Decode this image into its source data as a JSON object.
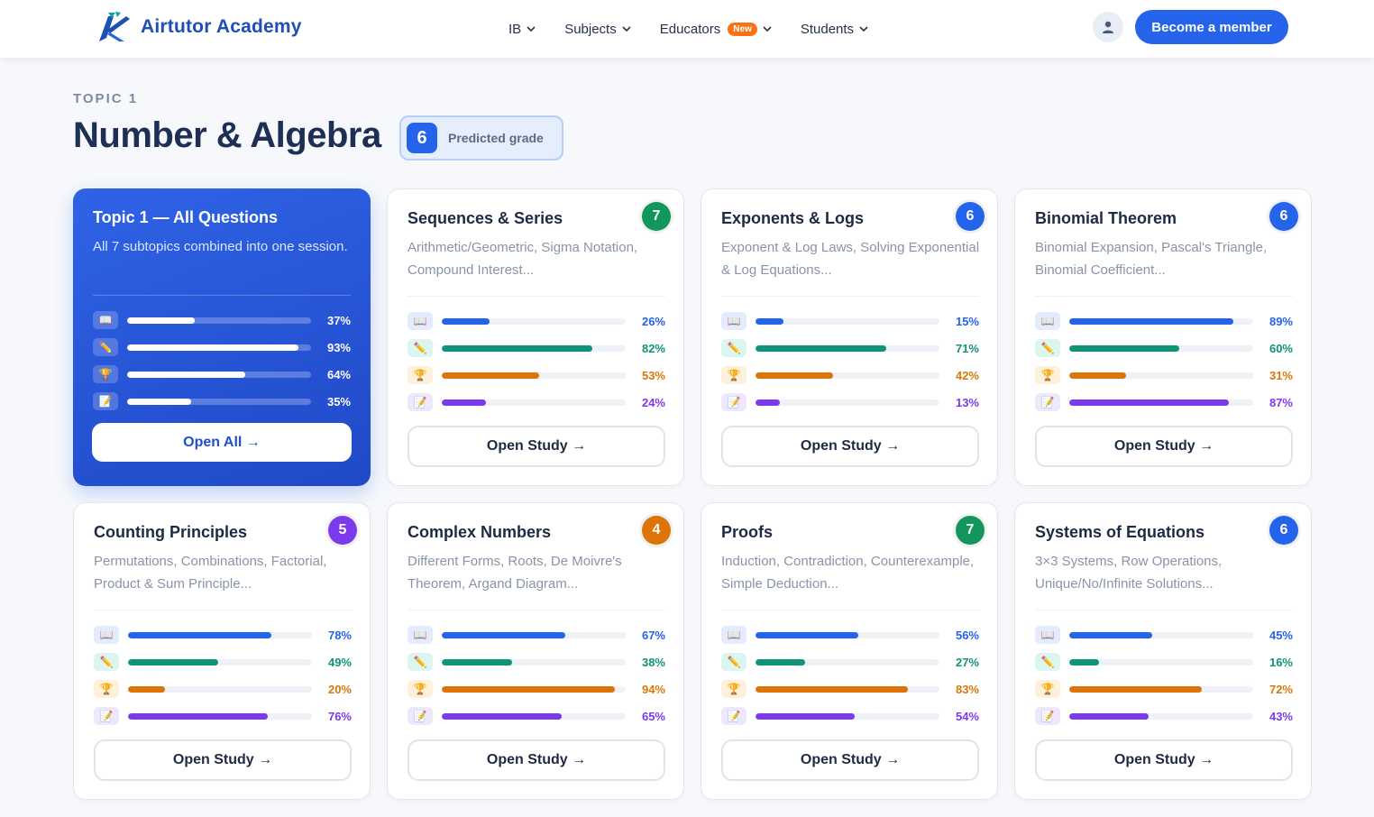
{
  "header": {
    "brand": "Airtutor Academy",
    "nav": [
      {
        "label": "IB",
        "badge": ""
      },
      {
        "label": "Subjects",
        "badge": ""
      },
      {
        "label": "Educators",
        "badge": "New"
      },
      {
        "label": "Students",
        "badge": ""
      }
    ],
    "cta": "Become a member"
  },
  "page": {
    "eyebrow": "TOPIC 1",
    "title": "Number & Algebra",
    "predicted_grade": "6",
    "predicted_grade_label": "Predicted grade"
  },
  "featured": {
    "title": "Topic 1 — All Questions",
    "desc": "All 7 subtopics combined into one session.",
    "bars": [
      {
        "icon": "book-icon",
        "glyph": "📖",
        "value": 37,
        "label": "37%"
      },
      {
        "icon": "pencil-icon",
        "glyph": "✏️",
        "value": 93,
        "label": "93%"
      },
      {
        "icon": "trophy-icon",
        "glyph": "🏆",
        "value": 64,
        "label": "64%"
      },
      {
        "icon": "memo-icon",
        "glyph": "📝",
        "value": 35,
        "label": "35%"
      }
    ],
    "button": "Open All →"
  },
  "cards": [
    {
      "title": "Sequences & Series",
      "desc": "Arithmetic/Geometric, Sigma Notation, Compound Interest...",
      "grade": "7",
      "grade_color": "#12965b",
      "bars": [
        26,
        82,
        53,
        24
      ],
      "labels": [
        "26%",
        "82%",
        "53%",
        "24%"
      ],
      "button": "Open Study →"
    },
    {
      "title": "Exponents & Logs",
      "desc": "Exponent & Log Laws, Solving Exponential & Log Equations...",
      "grade": "6",
      "grade_color": "#2563eb",
      "bars": [
        15,
        71,
        42,
        13
      ],
      "labels": [
        "15%",
        "71%",
        "42%",
        "13%"
      ],
      "button": "Open Study →"
    },
    {
      "title": "Binomial Theorem",
      "desc": "Binomial Expansion, Pascal's Triangle, Binomial Coefficient...",
      "grade": "6",
      "grade_color": "#2563eb",
      "bars": [
        89,
        60,
        31,
        87
      ],
      "labels": [
        "89%",
        "60%",
        "31%",
        "87%"
      ],
      "button": "Open Study →"
    },
    {
      "title": "Counting Principles",
      "desc": "Permutations, Combinations, Factorial, Product & Sum Principle...",
      "grade": "5",
      "grade_color": "#7c3aed",
      "bars": [
        78,
        49,
        20,
        76
      ],
      "labels": [
        "78%",
        "49%",
        "20%",
        "76%"
      ],
      "button": "Open Study →"
    },
    {
      "title": "Complex Numbers",
      "desc": "Different Forms, Roots, De Moivre's Theorem, Argand Diagram...",
      "grade": "4",
      "grade_color": "#dc7408",
      "bars": [
        67,
        38,
        94,
        65
      ],
      "labels": [
        "67%",
        "38%",
        "94%",
        "65%"
      ],
      "button": "Open Study →"
    },
    {
      "title": "Proofs",
      "desc": "Induction, Contradiction, Counterexample, Simple Deduction...",
      "grade": "7",
      "grade_color": "#12965b",
      "bars": [
        56,
        27,
        83,
        54
      ],
      "labels": [
        "56%",
        "27%",
        "83%",
        "54%"
      ],
      "button": "Open Study →"
    },
    {
      "title": "Systems of Equations",
      "desc": "3×3 Systems, Row Operations, Unique/No/Infinite Solutions...",
      "grade": "6",
      "grade_color": "#2563eb",
      "bars": [
        45,
        16,
        72,
        43
      ],
      "labels": [
        "45%",
        "16%",
        "72%",
        "43%"
      ],
      "button": "Open Study →"
    }
  ]
}
